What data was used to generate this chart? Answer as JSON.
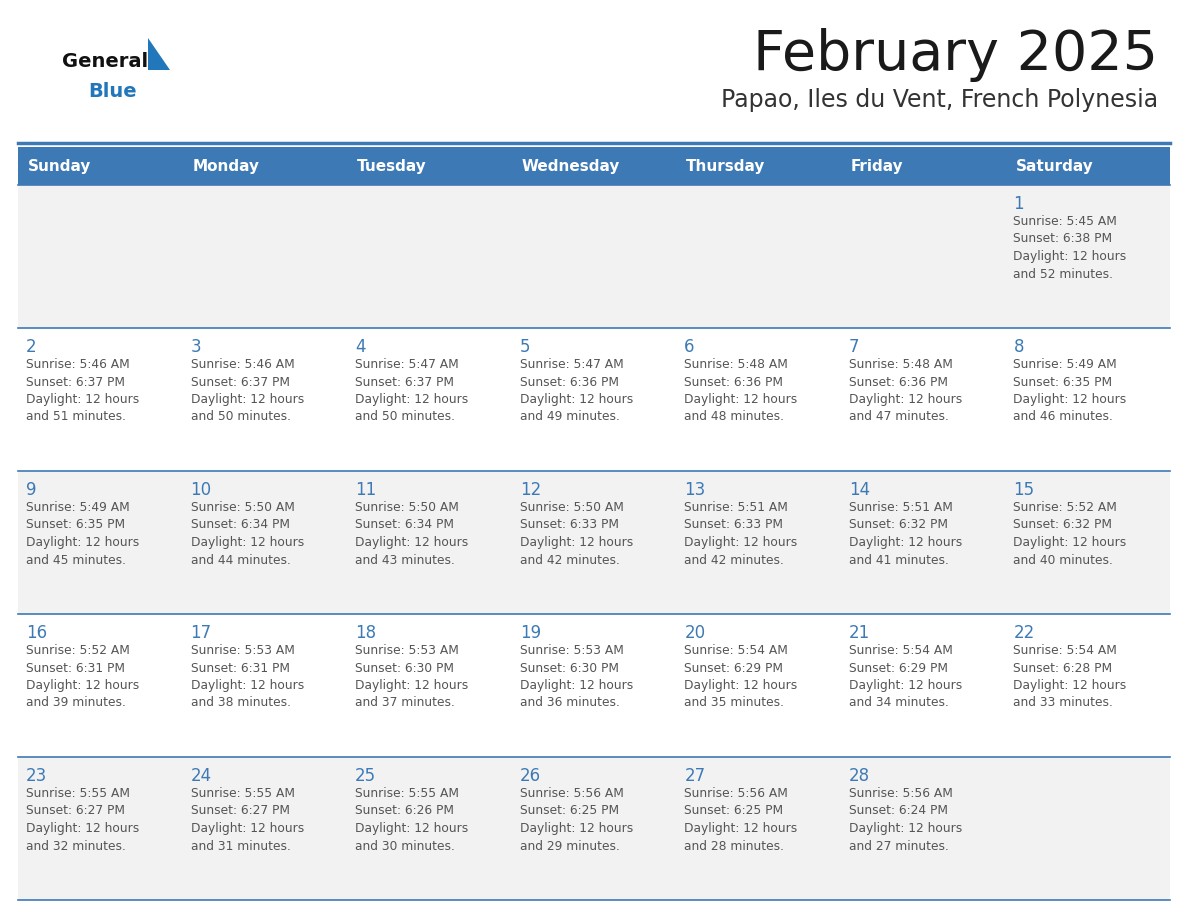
{
  "title": "February 2025",
  "subtitle": "Papao, Iles du Vent, French Polynesia",
  "days_of_week": [
    "Sunday",
    "Monday",
    "Tuesday",
    "Wednesday",
    "Thursday",
    "Friday",
    "Saturday"
  ],
  "header_bg": "#3D7AB5",
  "header_text": "#FFFFFF",
  "row_bg_1": "#F2F2F2",
  "row_bg_2": "#FFFFFF",
  "row_bg_3": "#F2F2F2",
  "row_bg_4": "#FFFFFF",
  "row_bg_5": "#F2F2F2",
  "row_bgs": [
    "#F2F2F2",
    "#FFFFFF",
    "#F2F2F2",
    "#FFFFFF",
    "#F2F2F2"
  ],
  "border_color": "#3D7AB5",
  "day_number_color": "#3D7AB5",
  "text_color": "#555555",
  "title_color": "#1a1a1a",
  "subtitle_color": "#333333",
  "logo_general_color": "#111111",
  "logo_blue_color": "#2277BB",
  "calendar_data": [
    [
      {
        "day": null,
        "sunrise": null,
        "sunset": null,
        "daylight": null
      },
      {
        "day": null,
        "sunrise": null,
        "sunset": null,
        "daylight": null
      },
      {
        "day": null,
        "sunrise": null,
        "sunset": null,
        "daylight": null
      },
      {
        "day": null,
        "sunrise": null,
        "sunset": null,
        "daylight": null
      },
      {
        "day": null,
        "sunrise": null,
        "sunset": null,
        "daylight": null
      },
      {
        "day": null,
        "sunrise": null,
        "sunset": null,
        "daylight": null
      },
      {
        "day": 1,
        "sunrise": "5:45 AM",
        "sunset": "6:38 PM",
        "daylight": "12 hours\nand 52 minutes."
      }
    ],
    [
      {
        "day": 2,
        "sunrise": "5:46 AM",
        "sunset": "6:37 PM",
        "daylight": "12 hours\nand 51 minutes."
      },
      {
        "day": 3,
        "sunrise": "5:46 AM",
        "sunset": "6:37 PM",
        "daylight": "12 hours\nand 50 minutes."
      },
      {
        "day": 4,
        "sunrise": "5:47 AM",
        "sunset": "6:37 PM",
        "daylight": "12 hours\nand 50 minutes."
      },
      {
        "day": 5,
        "sunrise": "5:47 AM",
        "sunset": "6:36 PM",
        "daylight": "12 hours\nand 49 minutes."
      },
      {
        "day": 6,
        "sunrise": "5:48 AM",
        "sunset": "6:36 PM",
        "daylight": "12 hours\nand 48 minutes."
      },
      {
        "day": 7,
        "sunrise": "5:48 AM",
        "sunset": "6:36 PM",
        "daylight": "12 hours\nand 47 minutes."
      },
      {
        "day": 8,
        "sunrise": "5:49 AM",
        "sunset": "6:35 PM",
        "daylight": "12 hours\nand 46 minutes."
      }
    ],
    [
      {
        "day": 9,
        "sunrise": "5:49 AM",
        "sunset": "6:35 PM",
        "daylight": "12 hours\nand 45 minutes."
      },
      {
        "day": 10,
        "sunrise": "5:50 AM",
        "sunset": "6:34 PM",
        "daylight": "12 hours\nand 44 minutes."
      },
      {
        "day": 11,
        "sunrise": "5:50 AM",
        "sunset": "6:34 PM",
        "daylight": "12 hours\nand 43 minutes."
      },
      {
        "day": 12,
        "sunrise": "5:50 AM",
        "sunset": "6:33 PM",
        "daylight": "12 hours\nand 42 minutes."
      },
      {
        "day": 13,
        "sunrise": "5:51 AM",
        "sunset": "6:33 PM",
        "daylight": "12 hours\nand 42 minutes."
      },
      {
        "day": 14,
        "sunrise": "5:51 AM",
        "sunset": "6:32 PM",
        "daylight": "12 hours\nand 41 minutes."
      },
      {
        "day": 15,
        "sunrise": "5:52 AM",
        "sunset": "6:32 PM",
        "daylight": "12 hours\nand 40 minutes."
      }
    ],
    [
      {
        "day": 16,
        "sunrise": "5:52 AM",
        "sunset": "6:31 PM",
        "daylight": "12 hours\nand 39 minutes."
      },
      {
        "day": 17,
        "sunrise": "5:53 AM",
        "sunset": "6:31 PM",
        "daylight": "12 hours\nand 38 minutes."
      },
      {
        "day": 18,
        "sunrise": "5:53 AM",
        "sunset": "6:30 PM",
        "daylight": "12 hours\nand 37 minutes."
      },
      {
        "day": 19,
        "sunrise": "5:53 AM",
        "sunset": "6:30 PM",
        "daylight": "12 hours\nand 36 minutes."
      },
      {
        "day": 20,
        "sunrise": "5:54 AM",
        "sunset": "6:29 PM",
        "daylight": "12 hours\nand 35 minutes."
      },
      {
        "day": 21,
        "sunrise": "5:54 AM",
        "sunset": "6:29 PM",
        "daylight": "12 hours\nand 34 minutes."
      },
      {
        "day": 22,
        "sunrise": "5:54 AM",
        "sunset": "6:28 PM",
        "daylight": "12 hours\nand 33 minutes."
      }
    ],
    [
      {
        "day": 23,
        "sunrise": "5:55 AM",
        "sunset": "6:27 PM",
        "daylight": "12 hours\nand 32 minutes."
      },
      {
        "day": 24,
        "sunrise": "5:55 AM",
        "sunset": "6:27 PM",
        "daylight": "12 hours\nand 31 minutes."
      },
      {
        "day": 25,
        "sunrise": "5:55 AM",
        "sunset": "6:26 PM",
        "daylight": "12 hours\nand 30 minutes."
      },
      {
        "day": 26,
        "sunrise": "5:56 AM",
        "sunset": "6:25 PM",
        "daylight": "12 hours\nand 29 minutes."
      },
      {
        "day": 27,
        "sunrise": "5:56 AM",
        "sunset": "6:25 PM",
        "daylight": "12 hours\nand 28 minutes."
      },
      {
        "day": 28,
        "sunrise": "5:56 AM",
        "sunset": "6:24 PM",
        "daylight": "12 hours\nand 27 minutes."
      },
      {
        "day": null,
        "sunrise": null,
        "sunset": null,
        "daylight": null
      }
    ]
  ]
}
